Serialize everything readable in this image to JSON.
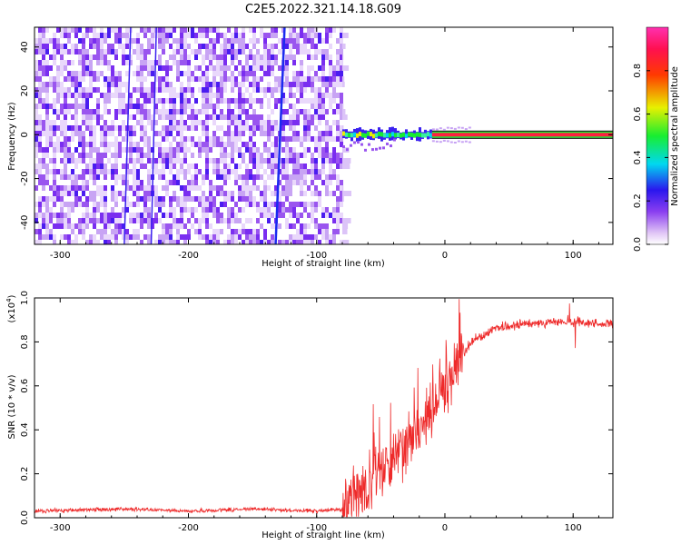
{
  "colors": {
    "snr_line": "#ee2a2a",
    "frame": "#000000",
    "background": "#ffffff"
  },
  "chart_data": [
    {
      "type": "heatmap",
      "title": "C2E5.2022.321.14.18.G09",
      "xlabel": "Height of straight line (km)",
      "ylabel": "Frequency (Hz)",
      "xlim": [
        -320,
        131
      ],
      "ylim": [
        -50,
        49
      ],
      "xticks": [
        "-300",
        "-200",
        "-100",
        "0",
        "100"
      ],
      "yticks": [
        "-40",
        "-20",
        "0",
        "20",
        "40"
      ],
      "colorbar": {
        "label": "Normalized spectral amplitude",
        "range": [
          0,
          1
        ],
        "ticks": [
          "0.0",
          "0.2",
          "0.4",
          "0.6",
          "0.8"
        ],
        "colormap": "rainbow (purple-blue-cyan-green-yellow-red-magenta)"
      },
      "regions": [
        {
          "x_range": [
            -320,
            -80
          ],
          "description": "broadband noise, amplitude 0.0-0.2"
        },
        {
          "x_range": [
            -80,
            -10
          ],
          "freq_center": 0,
          "description": "signal emerging near 0 Hz, amplitude 0.3-0.6"
        },
        {
          "x_range": [
            -10,
            131
          ],
          "freq_center": 0,
          "description": "strong narrow line at 0 Hz, amplitude ~1.0"
        }
      ]
    },
    {
      "type": "line",
      "xlabel": "Height of straight line (km)",
      "ylabel": "SNR (10 * v/v)",
      "yscale_label": "(x10",
      "yscale_exp": "4",
      "yscale_close": ")",
      "xlim": [
        -320,
        131
      ],
      "ylim": [
        0,
        1.0
      ],
      "xticks": [
        "-300",
        "-200",
        "-100",
        "0",
        "100"
      ],
      "yticks": [
        "0.0",
        "0.2",
        "0.4",
        "0.6",
        "0.8",
        "1.0"
      ],
      "series": [
        {
          "x": [
            -320,
            -250,
            -200,
            -150,
            -100,
            -80,
            -70,
            -60,
            -50,
            -40,
            -30,
            -20,
            -10,
            0,
            10,
            20,
            40,
            60,
            80,
            100,
            131
          ],
          "y": [
            0.03,
            0.04,
            0.03,
            0.04,
            0.03,
            0.04,
            0.1,
            0.15,
            0.2,
            0.28,
            0.33,
            0.4,
            0.5,
            0.58,
            0.7,
            0.8,
            0.86,
            0.88,
            0.89,
            0.89,
            0.88
          ]
        }
      ]
    }
  ]
}
